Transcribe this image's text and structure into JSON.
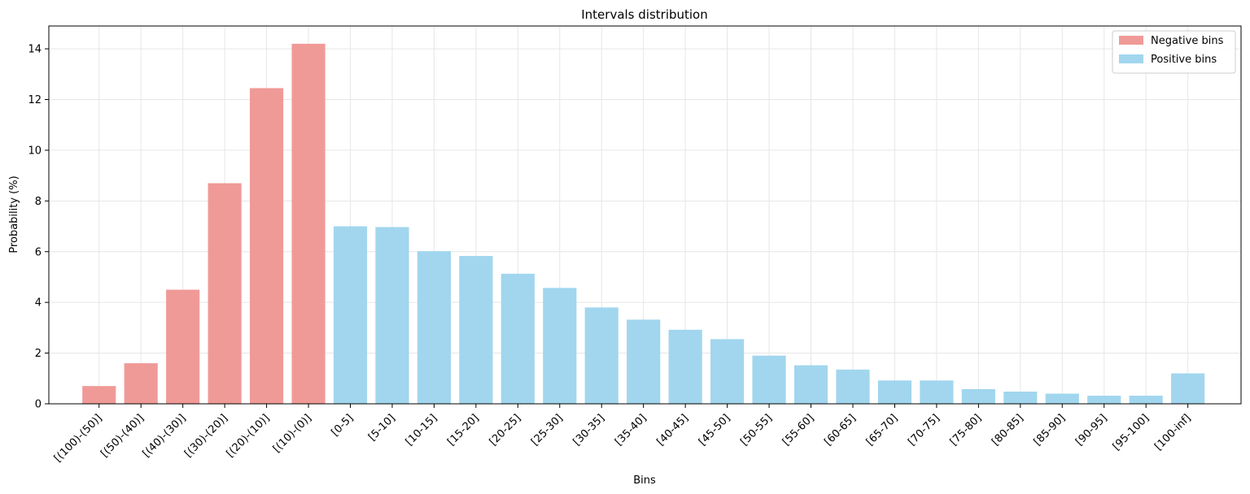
{
  "chart_data": {
    "type": "bar",
    "title": "Intervals distribution",
    "xlabel": "Bins",
    "ylabel": "Probability (%)",
    "ylim": [
      0,
      14.9
    ],
    "yticks": [
      0,
      2,
      4,
      6,
      8,
      10,
      12,
      14
    ],
    "grid": true,
    "legend_position": "top-right",
    "categories": [
      "[(100)-(50)]",
      "[(50)-(40)]",
      "[(40)-(30)]",
      "[(30)-(20)]",
      "[(20)-(10)]",
      "[(10)-(0)]",
      "[0-5]",
      "[5-10]",
      "[10-15]",
      "[15-20]",
      "[20-25]",
      "[25-30]",
      "[30-35]",
      "[35-40]",
      "[40-45]",
      "[45-50]",
      "[50-55]",
      "[55-60]",
      "[60-65]",
      "[65-70]",
      "[70-75]",
      "[75-80]",
      "[80-85]",
      "[85-90]",
      "[90-95]",
      "[95-100]",
      "[100-inf]"
    ],
    "series": [
      {
        "name": "Negative bins",
        "color": "#F09A98",
        "values": [
          0.7,
          1.6,
          4.5,
          8.7,
          12.45,
          14.2,
          null,
          null,
          null,
          null,
          null,
          null,
          null,
          null,
          null,
          null,
          null,
          null,
          null,
          null,
          null,
          null,
          null,
          null,
          null,
          null,
          null
        ]
      },
      {
        "name": "Positive bins",
        "color": "#A1D6EE",
        "values": [
          null,
          null,
          null,
          null,
          null,
          null,
          7.0,
          6.97,
          6.02,
          5.83,
          5.13,
          4.57,
          3.8,
          3.32,
          2.92,
          2.55,
          1.9,
          1.52,
          1.35,
          0.92,
          0.92,
          0.58,
          0.48,
          0.4,
          0.32,
          0.32,
          1.2
        ]
      }
    ]
  }
}
